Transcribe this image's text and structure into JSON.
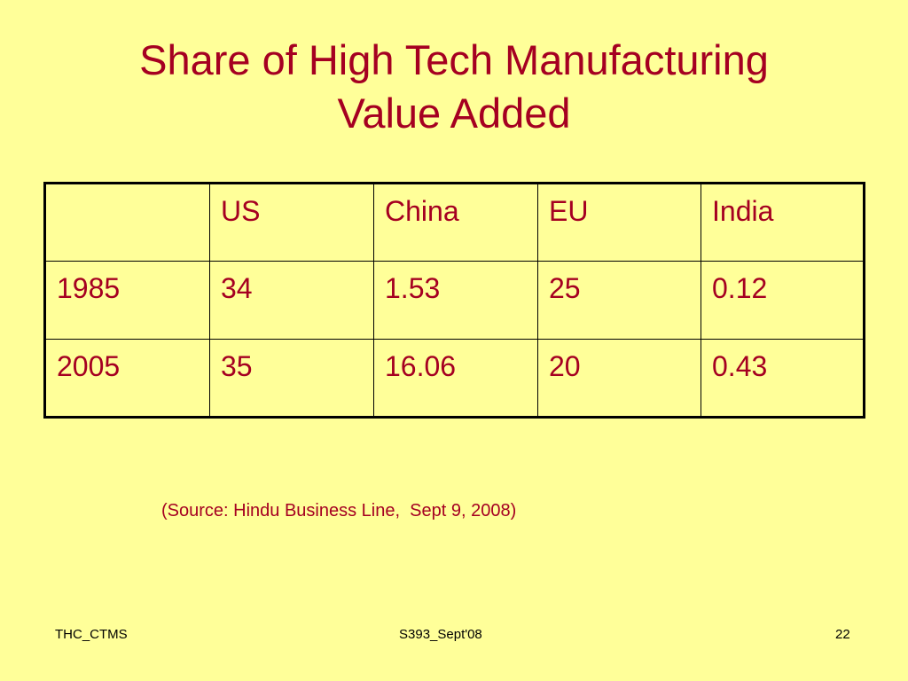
{
  "slide": {
    "title_line1": "Share of High Tech Manufacturing",
    "title_line2": "Value Added"
  },
  "table": {
    "headers": [
      "",
      "US",
      "China",
      "EU",
      "India"
    ],
    "rows": [
      [
        "1985",
        "34",
        "1.53",
        "25",
        "0.12"
      ],
      [
        "2005",
        "35",
        "16.06",
        "20",
        "0.43"
      ]
    ]
  },
  "source_note": "(Source: Hindu Business Line,  Sept 9, 2008)",
  "footer": {
    "left": "THC_CTMS",
    "center": "S393_Sept'08",
    "page_number": "22"
  },
  "colors": {
    "background": "#ffff99",
    "text_accent": "#a50021",
    "table_border": "#000000"
  }
}
